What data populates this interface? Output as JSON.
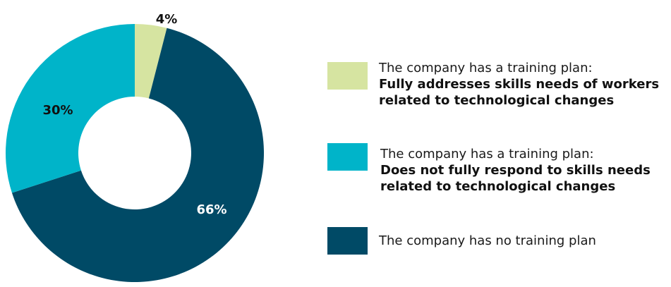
{
  "chart_data": {
    "type": "pie",
    "title": "",
    "categories": [
      "The company has a training plan: Fully addresses skills needs of workers related to technological changes",
      "The company has a training plan: Does not fully respond to skills needs related to technological changes",
      "The company has no training plan"
    ],
    "values": [
      4,
      30,
      66
    ],
    "labels": [
      "4%",
      "30%",
      "66%"
    ],
    "colors": [
      "#d6e4a1",
      "#00b4c9",
      "#004a66"
    ],
    "label_colors": [
      "#111111",
      "#111111",
      "#ffffff"
    ],
    "legend_position": "right",
    "donut": true
  },
  "legend": [
    {
      "line1": "The company has a training plan:",
      "line2": "Fully addresses skills needs of workers related to technological changes",
      "line2a": "Fully addresses skills needs of workers",
      "line2b": "related to technological changes",
      "color": "#d6e4a1"
    },
    {
      "line1": "The company has a training plan:",
      "line2a": "Does not fully respond to skills needs",
      "line2b": "related to technological changes",
      "color": "#00b4c9"
    },
    {
      "line1": "The company has no training plan",
      "color": "#004a66"
    }
  ]
}
